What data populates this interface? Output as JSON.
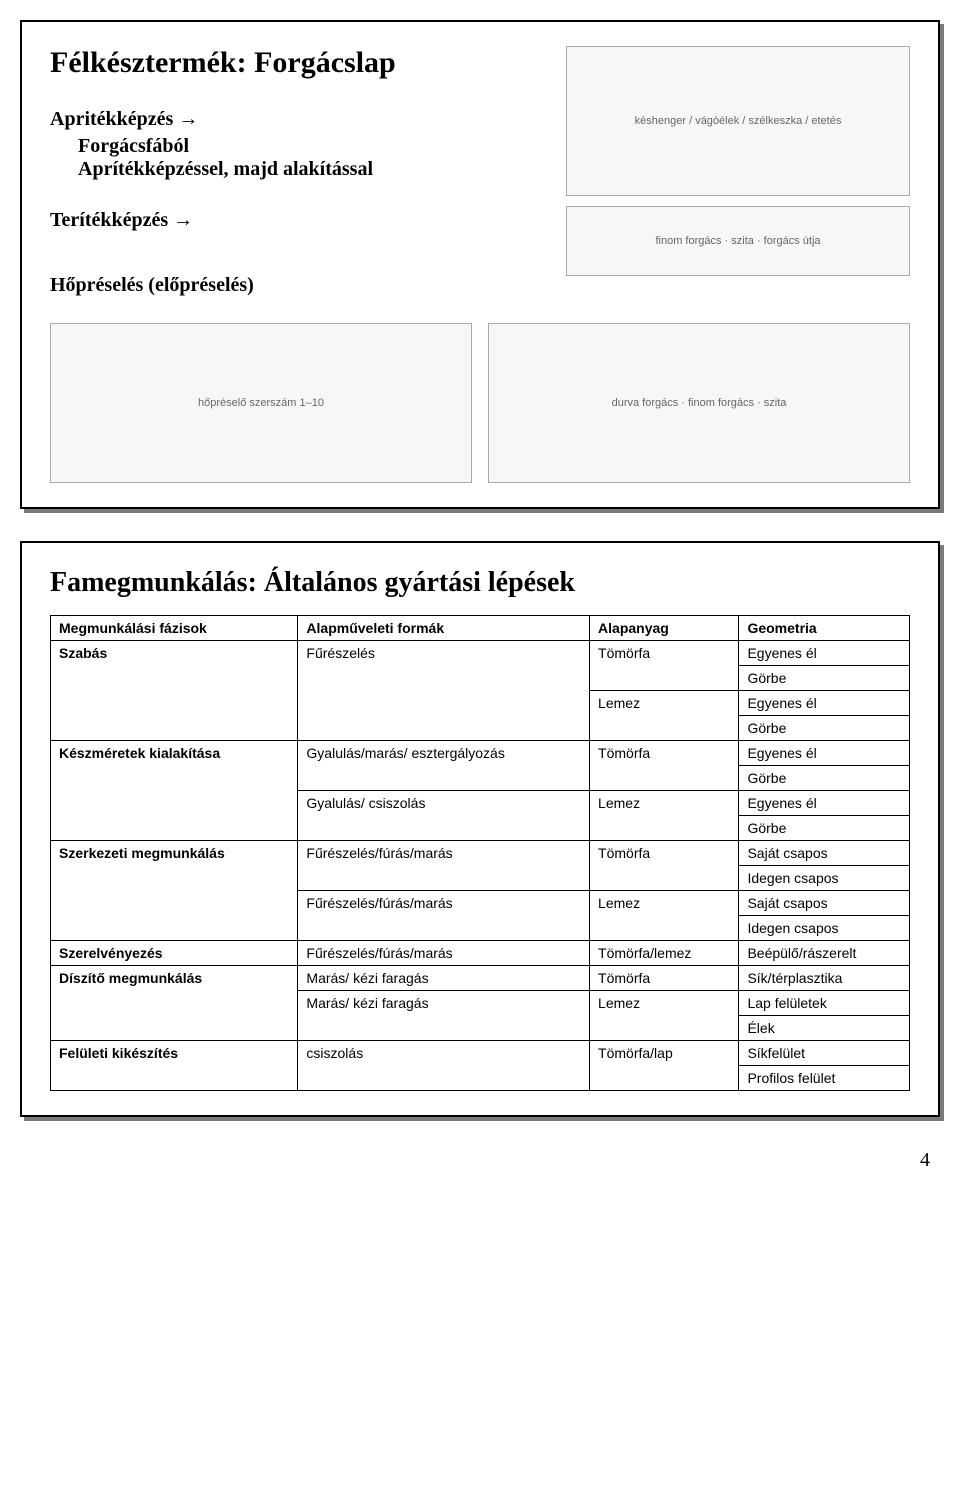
{
  "panel1": {
    "title": "Félkésztermék: Forgácslap",
    "step1_label": "Apritékképzés →",
    "step1_sub": "Forgácsfából\nAprítékképzéssel, majd alakítással",
    "step2_label": "Terítékképzés →",
    "step3_label": "Hőpréselés (előpréselés)",
    "diagram_top_label": "késhenger / vágóélek / szélkeszka / etetés",
    "diagram_mid_label": "finom forgács · szita · forgács útja",
    "diagram_left_label": "hőpréselő szerszám 1–10",
    "diagram_right_label": "durva forgács · finom forgács · szita"
  },
  "panel2": {
    "title": "Famegmunkálás: Általános gyártási lépések",
    "columns": [
      "Megmunkálási fázisok",
      "Alapműveleti formák",
      "Alapanyag",
      "Geometria"
    ],
    "rows": [
      {
        "phase": "Szabás",
        "phase_rs": 4,
        "op": "Fűrészelés",
        "op_rs": 4,
        "mat": "Tömörfa",
        "mat_rs": 2,
        "geo": "Egyenes él"
      },
      {
        "geo": "Görbe"
      },
      {
        "mat": "Lemez",
        "mat_rs": 2,
        "geo": "Egyenes él"
      },
      {
        "geo": "Görbe"
      },
      {
        "phase": "Készméretek kialakítása",
        "phase_rs": 4,
        "op": "Gyalulás/marás/ esztergályozás",
        "op_rs": 2,
        "mat": "Tömörfa",
        "mat_rs": 2,
        "geo": "Egyenes él"
      },
      {
        "geo": "Görbe"
      },
      {
        "op": "Gyalulás/ csiszolás",
        "op_rs": 2,
        "mat": "Lemez",
        "mat_rs": 2,
        "geo": "Egyenes él"
      },
      {
        "geo": "Görbe"
      },
      {
        "phase": "Szerkezeti megmunkálás",
        "phase_rs": 4,
        "op": "Fűrészelés/fúrás/marás",
        "op_rs": 2,
        "mat": "Tömörfa",
        "mat_rs": 2,
        "geo": "Saját csapos"
      },
      {
        "geo": "Idegen csapos"
      },
      {
        "op": "Fűrészelés/fúrás/marás",
        "op_rs": 2,
        "mat": "Lemez",
        "mat_rs": 2,
        "geo": "Saját csapos"
      },
      {
        "geo": "Idegen csapos"
      },
      {
        "phase": "Szerelvényezés",
        "phase_rs": 1,
        "op": "Fűrészelés/fúrás/marás",
        "op_rs": 1,
        "mat": "Tömörfa/lemez",
        "mat_rs": 1,
        "geo": "Beépülő/rászerelt"
      },
      {
        "phase": "Díszítő megmunkálás",
        "phase_rs": 3,
        "op": "Marás/ kézi faragás",
        "op_rs": 1,
        "mat": "Tömörfa",
        "mat_rs": 1,
        "geo": "Sík/térplasztika"
      },
      {
        "op": "Marás/ kézi faragás",
        "op_rs": 2,
        "mat": "Lemez",
        "mat_rs": 2,
        "geo": "Lap felületek"
      },
      {
        "geo": "Élek"
      },
      {
        "phase": "Felületi kikészítés",
        "phase_rs": 2,
        "op": "csiszolás",
        "op_rs": 2,
        "mat": "Tömörfa/lap",
        "mat_rs": 2,
        "geo": "Síkfelület"
      },
      {
        "geo": "Profilos felület"
      }
    ]
  },
  "page_number": "4",
  "styling": {
    "border_color": "#000000",
    "shadow_color": "#7a7a7a",
    "diagram_bg": "#f7f7f7",
    "font_body": "Times New Roman",
    "font_table": "Arial",
    "title_fontsize_pt": 22,
    "table_fontsize_pt": 11
  }
}
